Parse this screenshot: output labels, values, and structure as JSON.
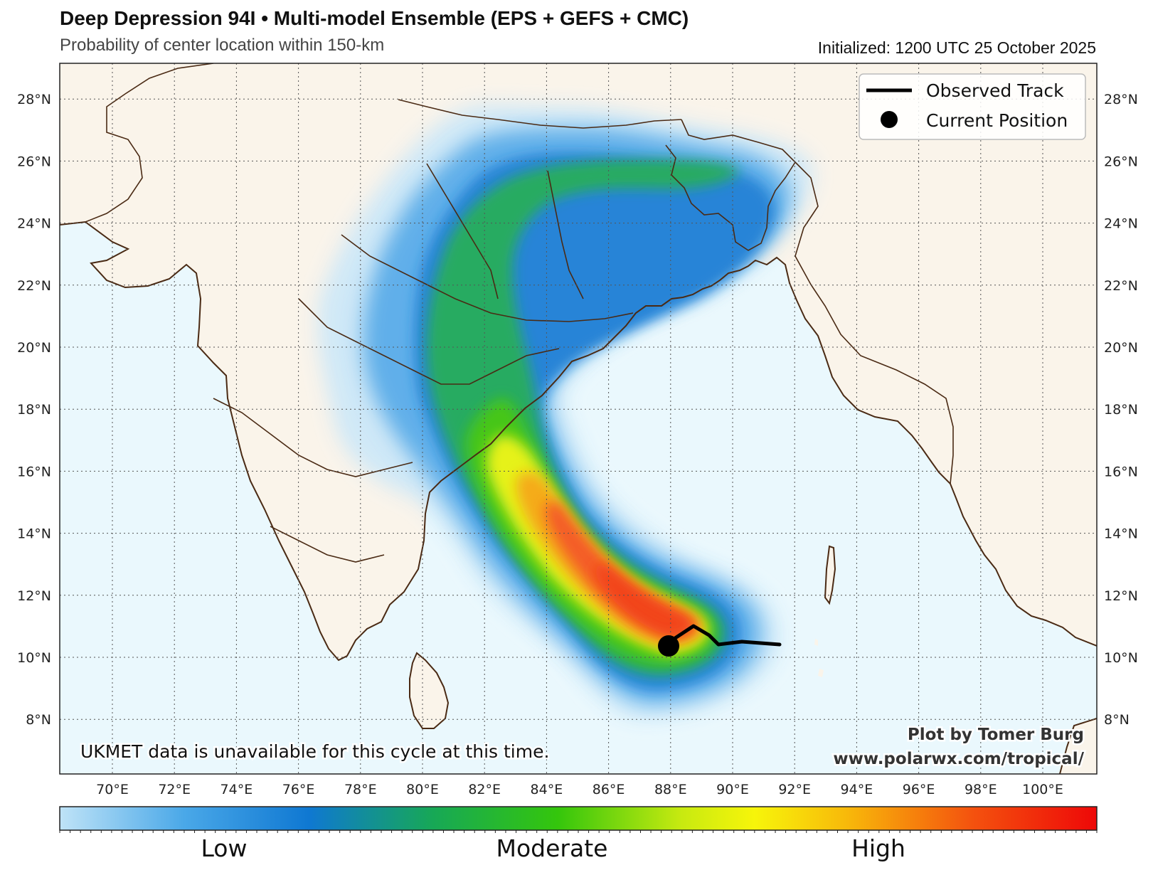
{
  "header": {
    "title": "Deep Depression 94I • Multi-model Ensemble (EPS + GEFS + CMC)",
    "subtitle": "Probability of center location within 150-km",
    "initialized": "Initialized: 1200 UTC 25 October 2025"
  },
  "map": {
    "lat_labels": [
      "8°N",
      "10°N",
      "12°N",
      "14°N",
      "16°N",
      "18°N",
      "20°N",
      "22°N",
      "24°N",
      "26°N",
      "28°N"
    ],
    "lon_labels": [
      "70°E",
      "72°E",
      "74°E",
      "76°E",
      "78°E",
      "80°E",
      "82°E",
      "84°E",
      "86°E",
      "88°E",
      "90°E",
      "92°E",
      "94°E",
      "96°E",
      "98°E",
      "100°E"
    ],
    "colors": {
      "land": "#faf4ea",
      "ocean": "#eaf8fd",
      "coast": "#4a2a14",
      "grid": "#555555"
    }
  },
  "legend": {
    "observed_track": "Observed Track",
    "current_position": "Current Position"
  },
  "notes": {
    "ukmet": "UKMET data is unavailable for this cycle at this time.",
    "credit_line1": "Plot by Tomer Burg",
    "credit_line2": "www.polarwx.com/tropical/"
  },
  "colorbar": {
    "low": "Low",
    "moderate": "Moderate",
    "high": "High"
  }
}
